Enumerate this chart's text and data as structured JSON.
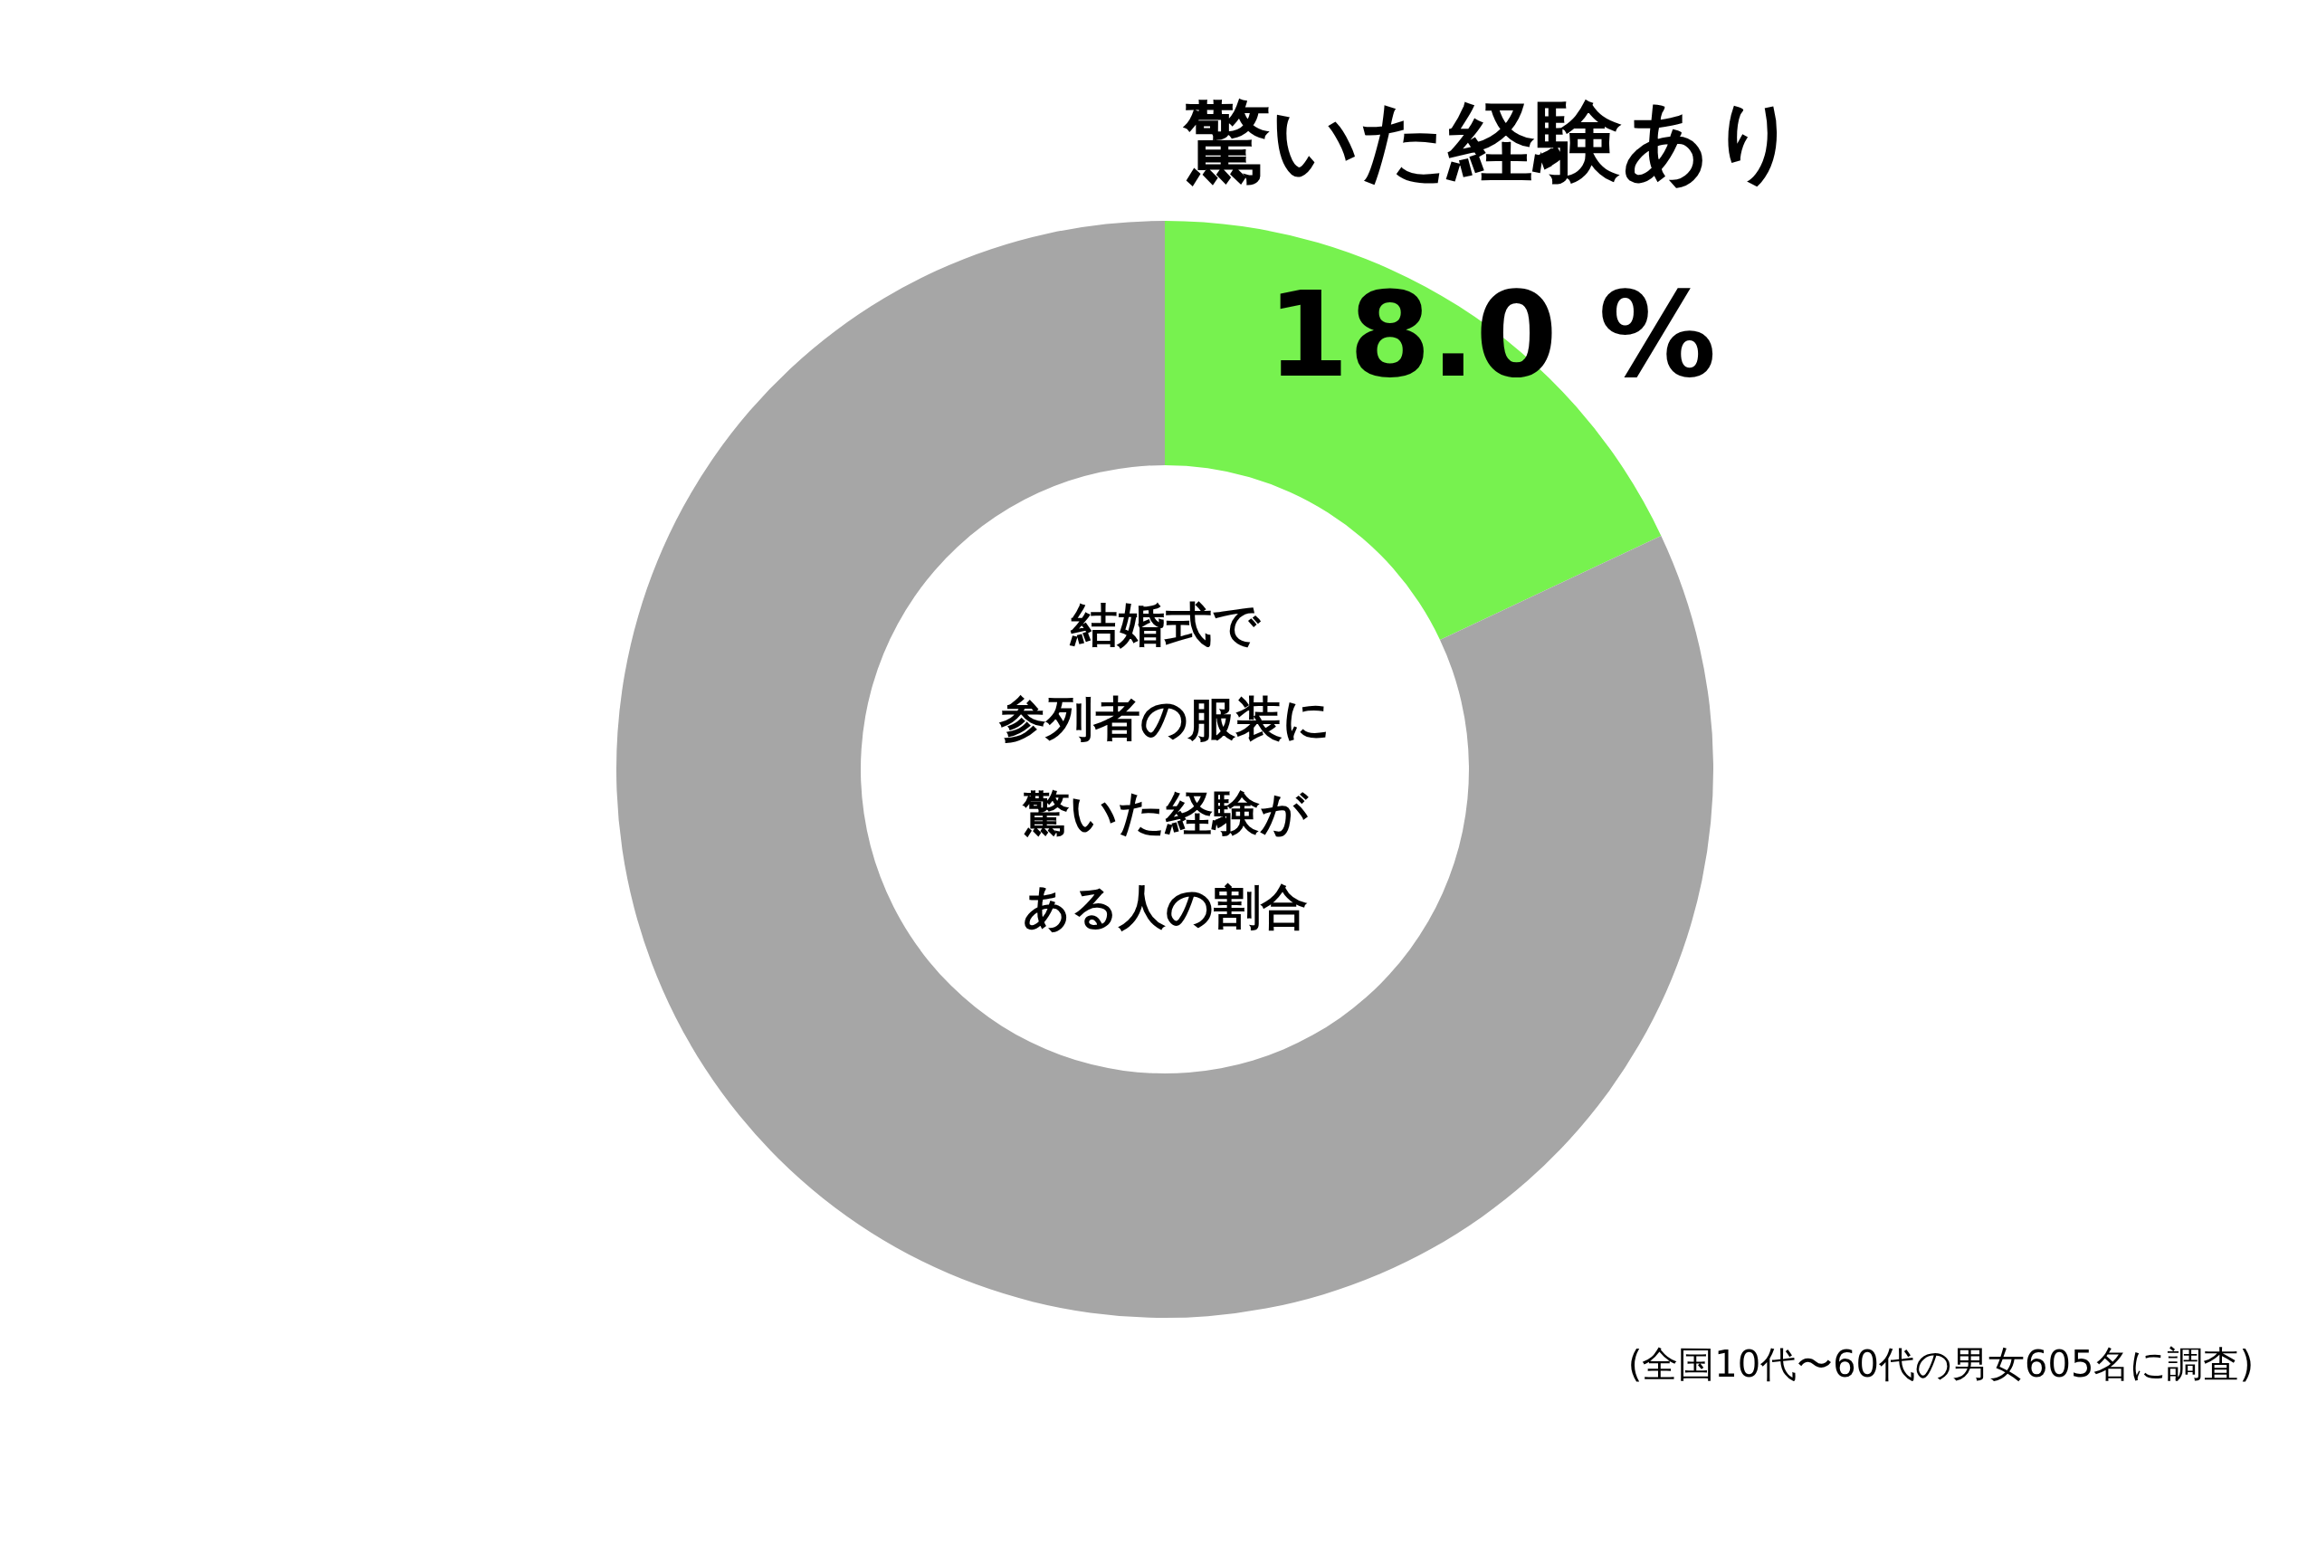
{
  "chart_data": {
    "type": "donut",
    "title": "結婚式で参列者の服装に驚いた経験がある人の割合",
    "categories": [
      "驚いた経験あり",
      null
    ],
    "values": [
      18.0,
      82.0
    ],
    "colors": [
      "#77f24f",
      "#a6a6a6"
    ],
    "value_labels": [
      "18.0 %",
      null
    ],
    "annotations": [
      "(全国10代〜60代の男女605名に調査)"
    ]
  }
}
